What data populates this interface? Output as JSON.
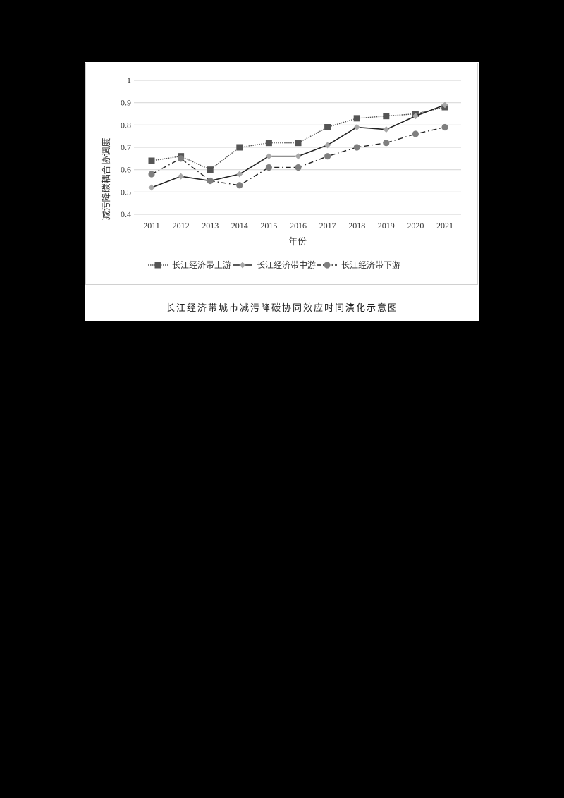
{
  "chart_data": {
    "type": "line",
    "title": "",
    "xlabel": "年份",
    "ylabel": "减污降碳耦合协调度",
    "ylim": [
      0.4,
      1
    ],
    "yticks": [
      "0.4",
      "0.5",
      "0.6",
      "0.7",
      "0.8",
      "0.9",
      "1"
    ],
    "grid": true,
    "legend_position": "bottom",
    "categories": [
      "2011",
      "2012",
      "2013",
      "2014",
      "2015",
      "2016",
      "2017",
      "2018",
      "2019",
      "2020",
      "2021"
    ],
    "series": [
      {
        "name": "长江经济带上游",
        "marker": "square",
        "line": "dotted",
        "color": "#555555",
        "values": [
          0.64,
          0.66,
          0.6,
          0.7,
          0.72,
          0.72,
          0.79,
          0.83,
          0.84,
          0.85,
          0.88
        ]
      },
      {
        "name": "长江经济带中游",
        "marker": "diamond",
        "line": "solid",
        "color": "#a8a8a8",
        "values": [
          0.52,
          0.57,
          0.55,
          0.58,
          0.66,
          0.66,
          0.71,
          0.79,
          0.78,
          0.84,
          0.89
        ]
      },
      {
        "name": "长江经济带下游",
        "marker": "circle",
        "line": "dash-dot",
        "color": "#7f7f7f",
        "values": [
          0.58,
          0.65,
          0.55,
          0.53,
          0.61,
          0.61,
          0.66,
          0.7,
          0.72,
          0.76,
          0.79
        ]
      }
    ]
  },
  "caption": "长江经济带城市减污降碳协同效应时间演化示意图"
}
